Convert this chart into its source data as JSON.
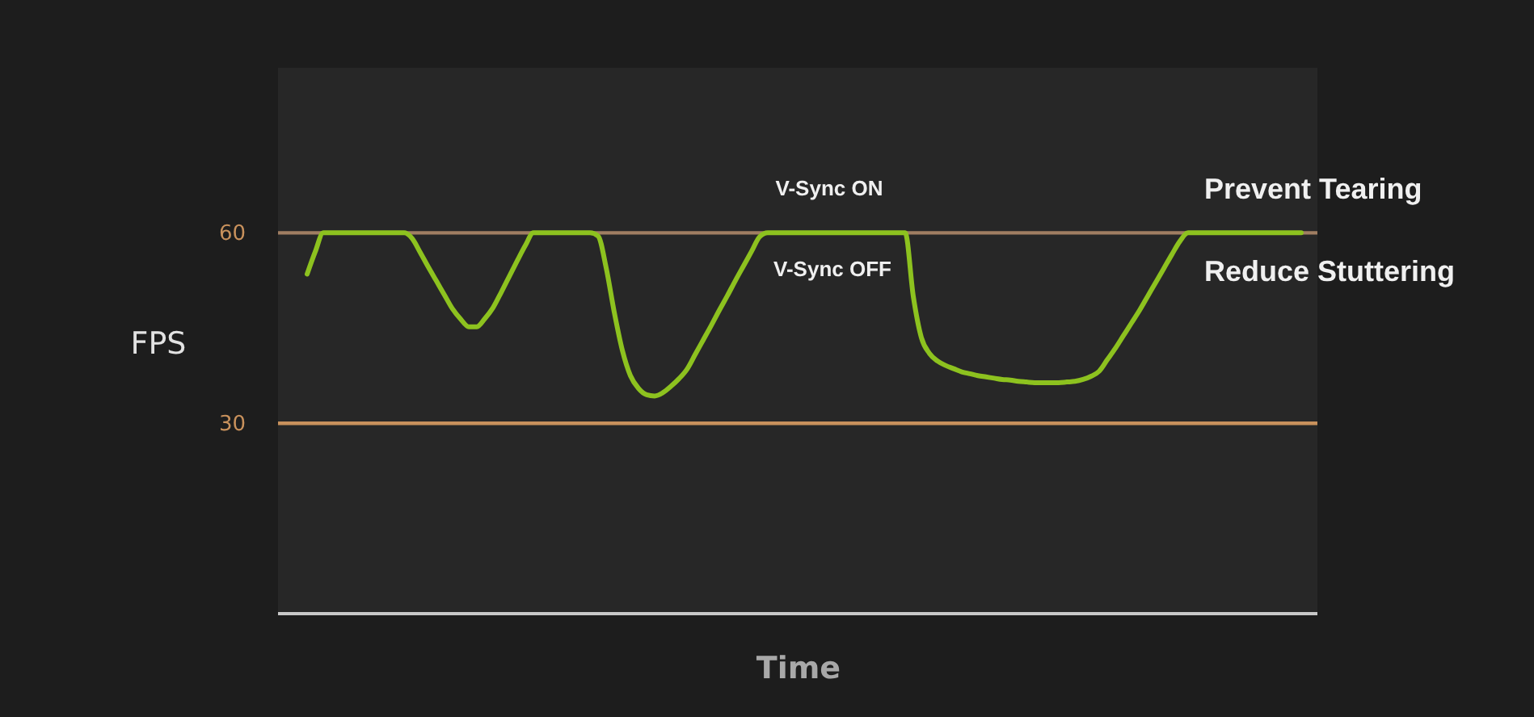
{
  "chart_data": {
    "type": "line",
    "xlabel": "Time",
    "ylabel": "FPS",
    "categories": [
      null,
      null,
      null,
      null,
      null,
      null,
      null,
      null,
      null,
      null,
      null,
      null,
      null,
      null,
      null,
      null,
      null,
      null,
      null,
      null,
      null,
      null,
      null,
      null,
      null,
      null,
      null,
      null,
      null,
      null,
      null,
      null,
      null,
      null,
      null,
      null,
      null,
      null,
      null,
      null,
      null,
      null,
      null,
      null,
      null,
      null,
      null,
      null,
      null,
      null,
      null,
      null,
      null,
      null,
      null,
      null,
      null,
      null,
      null,
      null,
      null,
      null,
      null,
      null,
      null,
      null,
      null,
      null,
      null,
      null,
      null,
      null,
      null,
      null,
      null,
      null,
      null,
      null,
      null,
      null,
      null,
      null,
      null,
      null,
      null,
      null,
      null,
      null,
      null,
      null,
      null,
      null,
      null,
      null,
      null,
      null,
      null,
      null,
      null,
      null,
      null,
      null,
      null,
      null,
      null,
      null,
      null,
      null,
      null,
      null,
      null,
      null,
      null,
      null,
      null,
      null,
      null,
      null,
      null,
      null,
      null,
      null,
      null,
      null
    ],
    "series": [
      {
        "color": "#8dc21f",
        "values": [
          53.5,
          57,
          60,
          60,
          60,
          60,
          60,
          60,
          60,
          60,
          60,
          60,
          60,
          59.1,
          56.9,
          54.6,
          52.4,
          50.2,
          48.0,
          46.4,
          45.2,
          45.2,
          46.5,
          48.2,
          50.6,
          53.1,
          55.6,
          58.0,
          60,
          60,
          60,
          60,
          60,
          60,
          60,
          60,
          59.5,
          54.5,
          47.5,
          41.5,
          37.5,
          35.5,
          34.5,
          34.3,
          34.8,
          35.8,
          37.0,
          38.5,
          40.8,
          43.1,
          45.4,
          47.8,
          50.1,
          52.5,
          54.8,
          57.1,
          59.4,
          60,
          60,
          60,
          60,
          60,
          60,
          60,
          60,
          60,
          60,
          60,
          60,
          60,
          60,
          60,
          60,
          60,
          60,
          50,
          43.5,
          41.0,
          39.8,
          39.1,
          38.6,
          38.1,
          37.8,
          37.5,
          37.3,
          37.1,
          36.9,
          36.8,
          36.6,
          36.5,
          36.4,
          36.4,
          36.4,
          36.4,
          36.5,
          36.6,
          36.9,
          37.4,
          38.2,
          40,
          41.8,
          43.8,
          45.8,
          47.8,
          50.0,
          52.2,
          54.4,
          56.6,
          58.7,
          60,
          60,
          60,
          60,
          60,
          60,
          60,
          60,
          60,
          60,
          60,
          60,
          60,
          60,
          60
        ]
      }
    ],
    "ylim": [
      0,
      86
    ],
    "yticks": [
      30,
      60
    ],
    "ref_lines": [
      {
        "axis": "y",
        "value": 60,
        "color": "#a07e62"
      },
      {
        "axis": "y",
        "value": 30,
        "color": "#c8915c"
      }
    ],
    "annotations": [
      "V-Sync ON",
      "V-Sync OFF",
      "Prevent Tearing",
      "Reduce Stuttering"
    ],
    "line_style": "solid",
    "tick_labels": "y"
  }
}
